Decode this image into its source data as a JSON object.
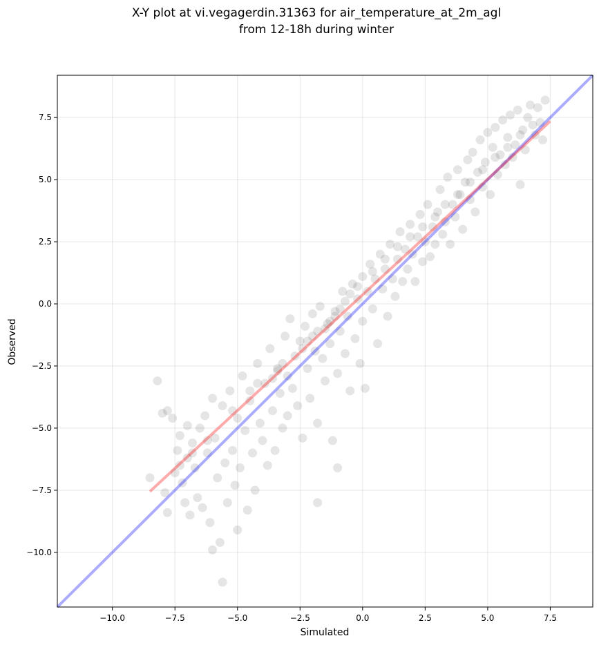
{
  "chart_data": {
    "type": "scatter",
    "title": [
      "X-Y plot at vi.vegagerdin.31363 for air_temperature_at_2m_agl",
      "from 12-18h during winter"
    ],
    "xlabel": "Simulated",
    "ylabel": "Observed",
    "xlim": [
      -12.2,
      9.2
    ],
    "ylim": [
      -12.2,
      9.2
    ],
    "xticks": [
      -10.0,
      -7.5,
      -5.0,
      -2.5,
      0.0,
      2.5,
      5.0,
      7.5
    ],
    "yticks": [
      -10.0,
      -7.5,
      -5.0,
      -2.5,
      0.0,
      2.5,
      5.0,
      7.5
    ],
    "xtick_labels": [
      "−10.0",
      "−7.5",
      "−5.0",
      "−2.5",
      "0.0",
      "2.5",
      "5.0",
      "7.5"
    ],
    "ytick_labels": [
      "−10.0",
      "−7.5",
      "−5.0",
      "−2.5",
      "0.0",
      "2.5",
      "5.0",
      "7.5"
    ],
    "grid": true,
    "point_color": "#000000",
    "point_alpha": 0.1,
    "identity_line": {
      "color": "#0000ff",
      "alpha": 0.33,
      "x": [
        -12.2,
        9.2
      ],
      "y": [
        -12.2,
        9.2
      ]
    },
    "fit_line": {
      "color": "#ff0000",
      "alpha": 0.33,
      "x": [
        -8.5,
        7.5
      ],
      "y": [
        -7.55,
        7.35
      ]
    },
    "points": [
      [
        -8.5,
        -7.0
      ],
      [
        -8.2,
        -3.1
      ],
      [
        -8.0,
        -4.4
      ],
      [
        -7.9,
        -7.6
      ],
      [
        -7.8,
        -4.3
      ],
      [
        -7.8,
        -8.4
      ],
      [
        -7.6,
        -4.6
      ],
      [
        -7.5,
        -6.8
      ],
      [
        -7.4,
        -5.9
      ],
      [
        -7.3,
        -5.3
      ],
      [
        -7.2,
        -7.2
      ],
      [
        -7.1,
        -8.0
      ],
      [
        -7.0,
        -6.2
      ],
      [
        -7.0,
        -4.9
      ],
      [
        -6.9,
        -8.5
      ],
      [
        -6.8,
        -5.6
      ],
      [
        -6.7,
        -6.6
      ],
      [
        -6.6,
        -7.8
      ],
      [
        -6.5,
        -5.0
      ],
      [
        -6.4,
        -8.2
      ],
      [
        -6.3,
        -4.5
      ],
      [
        -6.2,
        -6.0
      ],
      [
        -6.1,
        -8.8
      ],
      [
        -6.0,
        -3.8
      ],
      [
        -6.0,
        -9.9
      ],
      [
        -5.9,
        -5.4
      ],
      [
        -5.8,
        -7.0
      ],
      [
        -5.7,
        -9.6
      ],
      [
        -5.6,
        -11.2
      ],
      [
        -5.6,
        -4.1
      ],
      [
        -5.5,
        -6.4
      ],
      [
        -5.4,
        -8.0
      ],
      [
        -5.3,
        -3.5
      ],
      [
        -5.2,
        -5.9
      ],
      [
        -5.1,
        -7.3
      ],
      [
        -5.0,
        -4.6
      ],
      [
        -5.0,
        -9.1
      ],
      [
        -4.9,
        -6.6
      ],
      [
        -4.8,
        -2.9
      ],
      [
        -4.7,
        -5.1
      ],
      [
        -4.6,
        -8.3
      ],
      [
        -4.5,
        -3.9
      ],
      [
        -4.4,
        -6.0
      ],
      [
        -4.3,
        -7.5
      ],
      [
        -4.2,
        -2.4
      ],
      [
        -4.1,
        -4.8
      ],
      [
        -4.0,
        -5.5
      ],
      [
        -3.9,
        -3.2
      ],
      [
        -3.8,
        -6.5
      ],
      [
        -3.7,
        -1.8
      ],
      [
        -3.6,
        -4.3
      ],
      [
        -3.5,
        -5.9
      ],
      [
        -3.4,
        -2.7
      ],
      [
        -3.3,
        -3.6
      ],
      [
        -3.2,
        -5.0
      ],
      [
        -3.1,
        -1.3
      ],
      [
        -3.0,
        -2.9
      ],
      [
        -3.0,
        -4.5
      ],
      [
        -2.9,
        -0.6
      ],
      [
        -2.8,
        -3.4
      ],
      [
        -2.7,
        -2.1
      ],
      [
        -2.6,
        -4.1
      ],
      [
        -2.5,
        -1.5
      ],
      [
        -2.4,
        -5.4
      ],
      [
        -2.3,
        -0.9
      ],
      [
        -2.2,
        -2.6
      ],
      [
        -2.1,
        -3.8
      ],
      [
        -2.0,
        -0.4
      ],
      [
        -1.9,
        -1.9
      ],
      [
        -1.8,
        -4.8
      ],
      [
        -1.8,
        -8.0
      ],
      [
        -1.7,
        -0.1
      ],
      [
        -1.6,
        -2.2
      ],
      [
        -1.5,
        -3.1
      ],
      [
        -1.4,
        -0.8
      ],
      [
        -1.3,
        -1.6
      ],
      [
        -1.2,
        -5.5
      ],
      [
        -1.1,
        -0.3
      ],
      [
        -1.0,
        -2.8
      ],
      [
        -1.0,
        -6.6
      ],
      [
        -0.9,
        -1.1
      ],
      [
        -0.8,
        0.5
      ],
      [
        -0.7,
        -2.0
      ],
      [
        -0.6,
        -0.5
      ],
      [
        -0.5,
        -3.5
      ],
      [
        -0.4,
        0.8
      ],
      [
        -0.3,
        -1.4
      ],
      [
        -0.2,
        0.2
      ],
      [
        -0.1,
        -2.4
      ],
      [
        0.0,
        1.1
      ],
      [
        0.0,
        -0.7
      ],
      [
        0.1,
        -3.4
      ],
      [
        0.2,
        0.5
      ],
      [
        0.3,
        1.6
      ],
      [
        0.4,
        -0.2
      ],
      [
        0.5,
        1.0
      ],
      [
        0.6,
        -1.6
      ],
      [
        0.7,
        2.0
      ],
      [
        0.8,
        0.6
      ],
      [
        0.9,
        1.4
      ],
      [
        1.0,
        -0.5
      ],
      [
        1.1,
        2.4
      ],
      [
        1.2,
        1.0
      ],
      [
        1.3,
        0.3
      ],
      [
        1.4,
        1.8
      ],
      [
        1.5,
        2.9
      ],
      [
        1.6,
        0.9
      ],
      [
        1.7,
        2.2
      ],
      [
        1.8,
        1.4
      ],
      [
        1.9,
        3.2
      ],
      [
        2.0,
        2.0
      ],
      [
        2.1,
        0.9
      ],
      [
        2.2,
        2.7
      ],
      [
        2.3,
        3.6
      ],
      [
        2.4,
        1.7
      ],
      [
        2.5,
        2.5
      ],
      [
        2.6,
        4.0
      ],
      [
        2.7,
        1.9
      ],
      [
        2.8,
        3.1
      ],
      [
        2.9,
        2.4
      ],
      [
        3.0,
        3.7
      ],
      [
        3.1,
        4.6
      ],
      [
        3.2,
        2.8
      ],
      [
        3.3,
        3.3
      ],
      [
        3.4,
        5.1
      ],
      [
        3.5,
        2.4
      ],
      [
        3.6,
        4.0
      ],
      [
        3.7,
        3.5
      ],
      [
        3.8,
        5.4
      ],
      [
        3.9,
        4.4
      ],
      [
        4.0,
        3.0
      ],
      [
        4.1,
        4.9
      ],
      [
        4.2,
        5.8
      ],
      [
        4.3,
        4.2
      ],
      [
        4.4,
        6.1
      ],
      [
        4.5,
        3.7
      ],
      [
        4.6,
        5.3
      ],
      [
        4.7,
        6.6
      ],
      [
        4.8,
        4.7
      ],
      [
        4.9,
        5.7
      ],
      [
        5.0,
        6.9
      ],
      [
        5.1,
        4.4
      ],
      [
        5.2,
        6.3
      ],
      [
        5.3,
        7.1
      ],
      [
        5.4,
        5.2
      ],
      [
        5.5,
        6.0
      ],
      [
        5.6,
        7.4
      ],
      [
        5.7,
        5.6
      ],
      [
        5.8,
        6.7
      ],
      [
        5.9,
        7.6
      ],
      [
        6.0,
        5.9
      ],
      [
        6.1,
        6.4
      ],
      [
        6.2,
        7.8
      ],
      [
        6.3,
        4.8
      ],
      [
        6.4,
        7.0
      ],
      [
        6.5,
        6.2
      ],
      [
        6.6,
        7.5
      ],
      [
        6.7,
        8.0
      ],
      [
        6.8,
        7.2
      ],
      [
        6.9,
        6.8
      ],
      [
        7.0,
        7.9
      ],
      [
        7.1,
        7.3
      ],
      [
        7.2,
        6.6
      ],
      [
        7.3,
        8.2
      ],
      [
        -1.5,
        -1.0
      ],
      [
        -1.3,
        -0.7
      ],
      [
        -1.1,
        -0.5
      ],
      [
        -0.9,
        -0.2
      ],
      [
        -0.7,
        0.1
      ],
      [
        -0.5,
        0.4
      ],
      [
        -2.4,
        -1.8
      ],
      [
        -2.2,
        -1.5
      ],
      [
        -2.0,
        -1.3
      ],
      [
        -1.8,
        -1.1
      ],
      [
        -3.6,
        -3.0
      ],
      [
        -3.4,
        -2.6
      ],
      [
        -3.2,
        -2.4
      ],
      [
        -4.5,
        -3.5
      ],
      [
        -4.2,
        -3.2
      ],
      [
        -5.2,
        -4.3
      ],
      [
        -6.2,
        -5.5
      ],
      [
        -6.8,
        -6.0
      ],
      [
        -7.3,
        -6.5
      ],
      [
        -0.2,
        0.7
      ],
      [
        0.4,
        1.3
      ],
      [
        0.9,
        1.8
      ],
      [
        1.4,
        2.3
      ],
      [
        1.9,
        2.7
      ],
      [
        2.4,
        3.1
      ],
      [
        2.9,
        3.5
      ],
      [
        3.3,
        4.0
      ],
      [
        3.8,
        4.4
      ],
      [
        4.3,
        4.9
      ],
      [
        4.8,
        5.4
      ],
      [
        5.3,
        5.9
      ],
      [
        5.8,
        6.3
      ],
      [
        6.3,
        6.8
      ]
    ]
  }
}
